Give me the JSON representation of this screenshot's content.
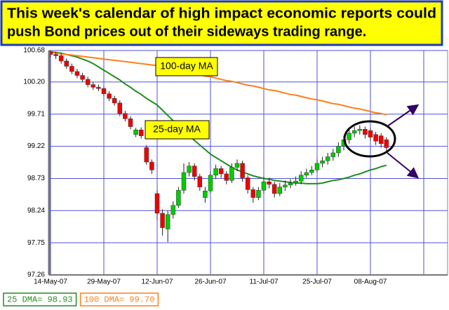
{
  "chart_data": {
    "type": "candlestick",
    "title": [
      "This week's calendar of high impact economic reports could",
      "push Bond prices out of their sideways trading range."
    ],
    "categories": [
      "14-May-07",
      null,
      null,
      null,
      null,
      null,
      null,
      null,
      null,
      null,
      "29-May-07",
      null,
      null,
      null,
      null,
      null,
      null,
      null,
      null,
      null,
      "12-Jun-07",
      null,
      null,
      null,
      null,
      null,
      null,
      null,
      null,
      null,
      "26-Jun-07",
      null,
      null,
      null,
      null,
      null,
      null,
      null,
      null,
      null,
      "11-Jul-07",
      null,
      null,
      null,
      null,
      null,
      null,
      null,
      null,
      null,
      "25-Jul-07",
      null,
      null,
      null,
      null,
      null,
      null,
      null,
      null,
      null,
      "08-Aug-07",
      null,
      null,
      null,
      null,
      null,
      null,
      null,
      null,
      null,
      null
    ],
    "open": [
      100.66,
      100.62,
      100.6,
      100.52,
      100.44,
      100.36,
      100.3,
      100.24,
      100.16,
      100.12,
      100.1,
      100.02,
      99.95,
      99.88,
      99.72,
      99.64,
      99.4,
      99.47,
      99.2,
      98.98,
      98.5,
      98.2,
      97.96,
      98.18,
      98.32,
      98.55,
      98.82,
      98.92,
      98.76,
      98.44,
      98.54,
      98.78,
      98.88,
      98.8,
      98.7,
      98.9,
      98.96,
      98.74,
      98.56,
      98.44,
      98.55,
      98.68,
      98.64,
      98.5,
      98.6,
      98.63,
      98.66,
      98.69,
      98.78,
      98.82,
      98.86,
      98.96,
      99.0,
      99.06,
      99.12,
      99.22,
      99.32,
      99.42,
      99.46,
      99.48,
      99.46,
      99.4,
      99.38,
      99.32,
      null,
      null,
      null,
      null,
      null,
      null,
      null
    ],
    "high": [
      100.68,
      100.66,
      100.64,
      100.56,
      100.48,
      100.4,
      100.34,
      100.28,
      100.2,
      100.16,
      100.14,
      100.06,
      99.99,
      99.92,
      99.76,
      99.68,
      99.5,
      99.51,
      99.24,
      99.02,
      98.55,
      98.26,
      98.24,
      98.38,
      98.6,
      98.96,
      98.98,
      98.96,
      98.8,
      98.6,
      98.84,
      98.94,
      98.92,
      98.84,
      98.96,
      99.02,
      99.0,
      98.78,
      98.6,
      98.6,
      98.76,
      98.74,
      98.68,
      98.66,
      98.7,
      98.72,
      98.76,
      98.84,
      98.88,
      98.92,
      99.02,
      99.06,
      99.12,
      99.18,
      99.28,
      99.38,
      99.48,
      99.52,
      99.54,
      99.52,
      99.5,
      99.44,
      99.42,
      99.36,
      null,
      null,
      null,
      null,
      null,
      null,
      null
    ],
    "low": [
      100.58,
      100.55,
      100.48,
      100.4,
      100.32,
      100.26,
      100.2,
      100.12,
      100.08,
      100.06,
      99.98,
      99.91,
      99.84,
      99.68,
      99.6,
      99.48,
      99.36,
      99.34,
      98.94,
      98.8,
      98.1,
      97.86,
      97.76,
      98.12,
      98.28,
      98.5,
      98.76,
      98.7,
      98.54,
      98.36,
      98.5,
      98.72,
      98.74,
      98.64,
      98.66,
      98.84,
      98.68,
      98.5,
      98.36,
      98.4,
      98.5,
      98.58,
      98.44,
      98.46,
      98.54,
      98.58,
      98.62,
      98.64,
      98.74,
      98.78,
      98.82,
      98.9,
      98.94,
      99.0,
      99.06,
      99.16,
      99.26,
      99.36,
      99.4,
      99.34,
      99.3,
      99.24,
      99.2,
      99.12,
      null,
      null,
      null,
      null,
      null,
      null,
      null
    ],
    "close": [
      100.62,
      100.6,
      100.52,
      100.44,
      100.36,
      100.3,
      100.24,
      100.16,
      100.12,
      100.1,
      100.02,
      99.95,
      99.88,
      99.72,
      99.64,
      99.52,
      99.47,
      99.38,
      98.98,
      98.86,
      98.2,
      97.98,
      98.18,
      98.32,
      98.55,
      98.82,
      98.92,
      98.76,
      98.6,
      98.54,
      98.78,
      98.88,
      98.8,
      98.7,
      98.9,
      98.96,
      98.74,
      98.56,
      98.44,
      98.55,
      98.68,
      98.64,
      98.5,
      98.6,
      98.63,
      98.66,
      98.69,
      98.78,
      98.82,
      98.86,
      98.96,
      99.0,
      99.06,
      99.12,
      99.22,
      99.32,
      99.42,
      99.46,
      99.48,
      99.4,
      99.36,
      99.3,
      99.26,
      99.2,
      null,
      null,
      null,
      null,
      null,
      null,
      null
    ],
    "up_color": "#00cc00",
    "down_color": "#ee0000",
    "lines": [
      {
        "name": "25 DMA= 98.93",
        "color": "#228b22",
        "values": [
          100.66,
          100.65,
          100.64,
          100.62,
          100.6,
          100.58,
          100.55,
          100.52,
          100.48,
          100.43,
          100.38,
          100.33,
          100.28,
          100.23,
          100.17,
          100.12,
          100.06,
          100.01,
          99.95,
          99.9,
          99.85,
          99.77,
          99.69,
          99.61,
          99.53,
          99.45,
          99.38,
          99.31,
          99.24,
          99.17,
          99.1,
          99.05,
          99.0,
          98.95,
          98.9,
          98.86,
          98.83,
          98.8,
          98.77,
          98.75,
          98.73,
          98.72,
          98.7,
          98.69,
          98.68,
          98.67,
          98.66,
          98.66,
          98.65,
          98.65,
          98.65,
          98.66,
          98.68,
          98.7,
          98.71,
          98.73,
          98.75,
          98.78,
          98.8,
          98.83,
          98.86,
          98.88,
          98.91,
          98.93,
          null,
          null,
          null,
          null,
          null,
          null,
          null
        ]
      },
      {
        "name": "100 DMA= 99.70",
        "color": "#ff7f1a",
        "values": [
          100.65,
          100.64,
          100.63,
          100.62,
          100.61,
          100.6,
          100.59,
          100.58,
          100.57,
          100.56,
          100.55,
          100.54,
          100.53,
          100.52,
          100.51,
          100.5,
          100.49,
          100.48,
          100.47,
          100.46,
          100.45,
          100.43,
          100.42,
          100.4,
          100.38,
          100.36,
          100.35,
          100.33,
          100.31,
          100.29,
          100.28,
          100.26,
          100.24,
          100.22,
          100.21,
          100.19,
          100.17,
          100.15,
          100.14,
          100.12,
          100.1,
          100.08,
          100.07,
          100.05,
          100.03,
          100.01,
          100.0,
          99.98,
          99.96,
          99.94,
          99.93,
          99.91,
          99.89,
          99.87,
          99.86,
          99.84,
          99.82,
          99.8,
          99.79,
          99.77,
          99.75,
          99.73,
          99.72,
          99.7,
          null,
          null,
          null,
          null,
          null,
          null,
          null
        ]
      }
    ],
    "annotations": [
      "100-day MA",
      "25-day MA"
    ],
    "ylim": [
      97.26,
      100.68
    ],
    "yticks": [
      97.26,
      97.75,
      98.24,
      98.73,
      99.22,
      99.71,
      {
        "value": 100.2,
        "label": "100.20"
      },
      100.68
    ],
    "grid": true
  }
}
